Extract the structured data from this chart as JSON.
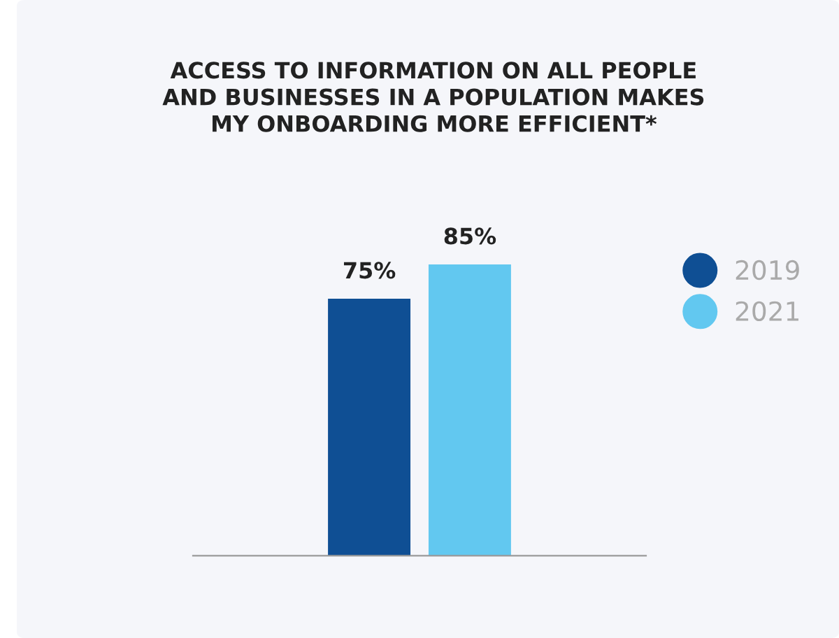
{
  "chart_data": {
    "type": "bar",
    "title": "ACCESS TO INFORMATION ON ALL PEOPLE\nAND BUSINESSES IN A POPULATION MAKES\nMY ONBOARDING MORE EFFICIENT*",
    "categories": [
      null
    ],
    "series": [
      {
        "name": "2019",
        "color": "#0f4f94",
        "values": [
          75
        ],
        "value_labels": [
          "75%"
        ]
      },
      {
        "name": "2021",
        "color": "#62c8f0",
        "values": [
          85
        ],
        "value_labels": [
          "85%"
        ]
      }
    ],
    "legend": "right",
    "marker": "circle",
    "grid": false
  }
}
